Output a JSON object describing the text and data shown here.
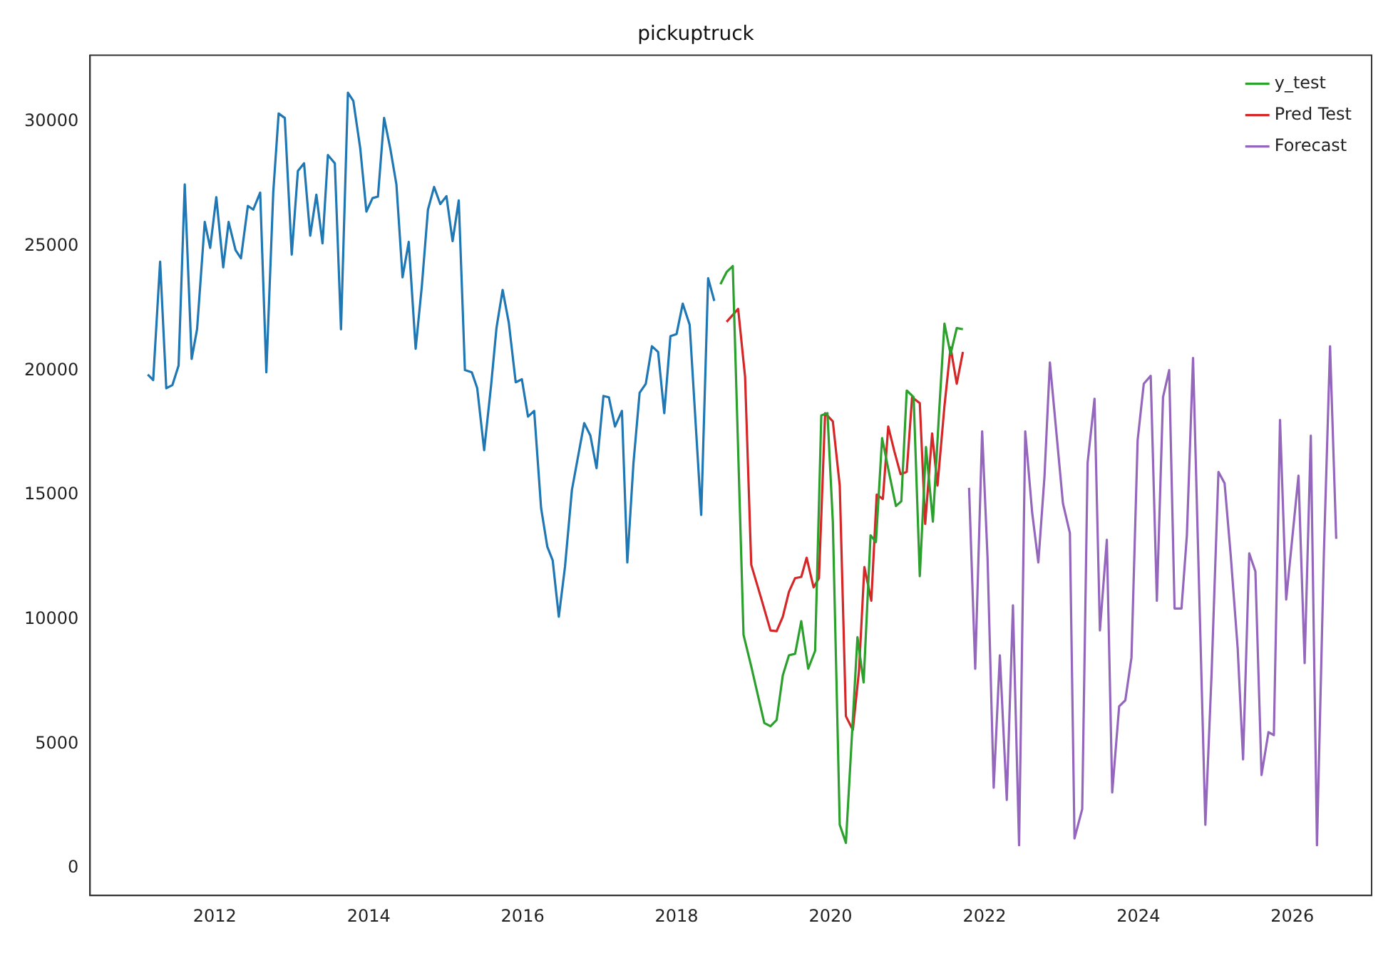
{
  "chart_data": {
    "type": "line",
    "title": "pickuptruck",
    "xlim": [
      2010.38,
      2027.03
    ],
    "ylim": [
      -1090,
      32670
    ],
    "xticks": [
      2012,
      2014,
      2016,
      2018,
      2020,
      2022,
      2024,
      2026
    ],
    "yticks": [
      0,
      5000,
      10000,
      15000,
      20000,
      25000,
      30000
    ],
    "legend": "top right",
    "grid": false,
    "series": [
      {
        "color": "#1f77b4",
        "x": [
          2011.13,
          2011.2,
          2011.29,
          2011.37,
          2011.45,
          2011.53,
          2011.61,
          2011.7,
          2011.77,
          2011.87,
          2011.94,
          2012.02,
          2012.11,
          2012.18,
          2012.27,
          2012.34,
          2012.43,
          2012.5,
          2012.59,
          2012.67,
          2012.76,
          2012.83,
          2012.91,
          2013,
          2013.08,
          2013.16,
          2013.24,
          2013.32,
          2013.4,
          2013.47,
          2013.56,
          2013.64,
          2013.73,
          2013.8,
          2013.89,
          2013.97,
          2014.05,
          2014.12,
          2014.2,
          2014.28,
          2014.36,
          2014.44,
          2014.52,
          2014.61,
          2014.69,
          2014.77,
          2014.85,
          2014.93,
          2015.01,
          2015.09,
          2015.17,
          2015.25,
          2015.34,
          2015.41,
          2015.5,
          2015.59,
          2015.66,
          2015.74,
          2015.82,
          2015.91,
          2015.99,
          2016.07,
          2016.15,
          2016.24,
          2016.32,
          2016.39,
          2016.47,
          2016.55,
          2016.64,
          2016.71,
          2016.8,
          2016.88,
          2016.96,
          2017.05,
          2017.12,
          2017.2,
          2017.29,
          2017.36,
          2017.44,
          2017.52,
          2017.6,
          2017.68,
          2017.76,
          2017.84,
          2017.92,
          2018,
          2018.08,
          2018.17,
          2018.32,
          2018.41,
          2018.49
        ],
        "values": [
          19840,
          19620,
          24380,
          19290,
          19420,
          20200,
          27480,
          20470,
          21660,
          25970,
          24930,
          26970,
          24150,
          25970,
          24840,
          24510,
          26620,
          26470,
          27150,
          19930,
          27170,
          30330,
          30150,
          24660,
          28020,
          28330,
          25420,
          27070,
          25110,
          28660,
          28330,
          21660,
          31170,
          30840,
          28930,
          26390,
          26930,
          26990,
          30150,
          28930,
          27480,
          23750,
          25170,
          20880,
          23380,
          26470,
          27380,
          26690,
          27010,
          25200,
          26840,
          20020,
          19930,
          19290,
          16800,
          19400,
          21710,
          23240,
          21930,
          19530,
          19650,
          18150,
          18380,
          14470,
          12930,
          12380,
          10110,
          12110,
          15200,
          16380,
          17890,
          17390,
          16080,
          18980,
          18930,
          17750,
          18380,
          12290,
          16290,
          19110,
          19470,
          20980,
          20750,
          18290,
          21380,
          21470,
          22690,
          21840,
          14200,
          23710,
          22800
        ]
      },
      {
        "name": "y_test",
        "color": "#2ca02c",
        "x": [
          2018.57,
          2018.65,
          2018.73,
          2018.87,
          2018.97,
          2019.14,
          2019.22,
          2019.3,
          2019.38,
          2019.46,
          2019.54,
          2019.62,
          2019.71,
          2019.8,
          2019.88,
          2019.96,
          2020.03,
          2020.12,
          2020.2,
          2020.35,
          2020.43,
          2020.52,
          2020.59,
          2020.67,
          2020.77,
          2020.85,
          2020.92,
          2020.99,
          2021.08,
          2021.16,
          2021.24,
          2021.33,
          2021.41,
          2021.48,
          2021.56,
          2021.64,
          2021.72
        ],
        "values": [
          23470,
          23960,
          24200,
          9380,
          8110,
          5840,
          5710,
          5960,
          7750,
          8560,
          8620,
          9930,
          8020,
          8740,
          18200,
          18290,
          13930,
          1750,
          1020,
          9290,
          7470,
          13380,
          13110,
          17290,
          15750,
          14560,
          14750,
          19200,
          18930,
          11740,
          16930,
          13930,
          18290,
          21890,
          20660,
          21710,
          21660
        ]
      },
      {
        "name": "Pred Test",
        "color": "#d62728",
        "x": [
          2018.65,
          2018.8,
          2018.89,
          2018.97,
          2019.1,
          2019.22,
          2019.3,
          2019.38,
          2019.46,
          2019.54,
          2019.62,
          2019.69,
          2019.78,
          2019.85,
          2019.93,
          2020.03,
          2020.12,
          2020.2,
          2020.29,
          2020.37,
          2020.44,
          2020.53,
          2020.6,
          2020.68,
          2020.75,
          2020.83,
          2020.91,
          2020.99,
          2021.06,
          2021.16,
          2021.23,
          2021.32,
          2021.39,
          2021.48,
          2021.56,
          2021.64,
          2021.72
        ],
        "values": [
          21960,
          22480,
          19750,
          12200,
          10840,
          9560,
          9530,
          10110,
          11110,
          11660,
          11710,
          12480,
          11290,
          11660,
          18290,
          17960,
          15380,
          6110,
          5560,
          7930,
          12110,
          10750,
          15020,
          14840,
          17750,
          16750,
          15840,
          15930,
          18930,
          18690,
          13840,
          17470,
          15380,
          18560,
          20930,
          19470,
          20750
        ]
      },
      {
        "name": "Forecast",
        "color": "#9467bd",
        "x": [
          2021.8,
          2021.88,
          2021.97,
          2022.04,
          2022.12,
          2022.2,
          2022.29,
          2022.37,
          2022.45,
          2022.53,
          2022.62,
          2022.7,
          2022.78,
          2022.85,
          2023.02,
          2023.11,
          2023.17,
          2023.27,
          2023.34,
          2023.43,
          2023.5,
          2023.59,
          2023.66,
          2023.75,
          2023.83,
          2023.91,
          2023.99,
          2024.07,
          2024.16,
          2024.24,
          2024.32,
          2024.4,
          2024.47,
          2024.56,
          2024.63,
          2024.71,
          2024.87,
          2024.95,
          2025.04,
          2025.12,
          2025.2,
          2025.29,
          2025.36,
          2025.44,
          2025.52,
          2025.6,
          2025.69,
          2025.76,
          2025.84,
          2025.92,
          2026.08,
          2026.16,
          2026.24,
          2026.32,
          2026.41,
          2026.49,
          2026.57
        ],
        "values": [
          15290,
          8020,
          17560,
          12480,
          3240,
          8560,
          2750,
          10570,
          930,
          17560,
          14290,
          12290,
          15750,
          20330,
          14660,
          13470,
          1200,
          2380,
          16290,
          18870,
          9560,
          13200,
          3050,
          6510,
          6750,
          8470,
          17200,
          19470,
          19790,
          10750,
          18930,
          20020,
          10440,
          10440,
          13380,
          20510,
          1750,
          7750,
          15930,
          15470,
          12560,
          8840,
          4380,
          12660,
          11930,
          3750,
          5470,
          5350,
          18020,
          10800,
          15780,
          8250,
          17390,
          930,
          12660,
          20980,
          13240
        ]
      }
    ]
  }
}
